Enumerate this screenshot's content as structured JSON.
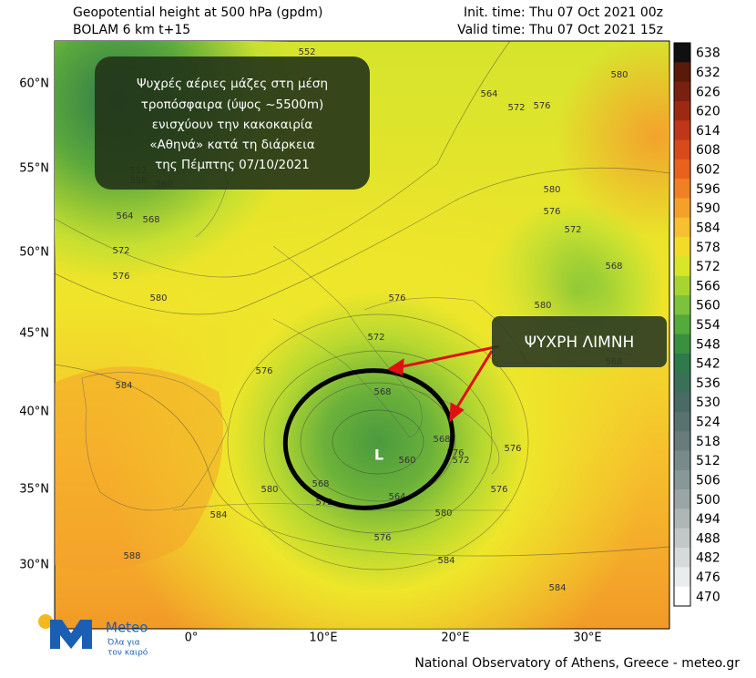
{
  "header": {
    "title": "Geopotential height at 500 hPa (gpdm)",
    "model": "BOLAM 6 km t+15",
    "init_time": "Init. time: Thu 07 Oct 2021 00z",
    "valid_time": "Valid time: Thu 07 Oct 2021 15z"
  },
  "annotation": {
    "lines": [
      "Ψυχρές αέριες μάζες στη μέση",
      "τροπόσφαιρα  (ύψος ~5500m)",
      "ενισχύουν την κακοκαιρία",
      "«Αθηνά» κατά τη διάρκεια",
      "της Πέμπτης 07/10/2021"
    ],
    "callout": "ΨΥΧΡΗ ΛΙΜΝΗ",
    "low": "L"
  },
  "map": {
    "lat_labels": [
      "60°N",
      "55°N",
      "50°N",
      "45°N",
      "40°N",
      "35°N",
      "30°N"
    ],
    "lon_labels": [
      "0°",
      "10°E",
      "20°E",
      "30°E"
    ],
    "contour_labels": [
      552,
      560,
      564,
      572,
      576,
      580,
      552,
      556,
      560,
      564,
      568,
      572,
      576,
      580,
      580,
      576,
      572,
      568,
      568,
      576,
      572,
      576,
      584,
      580,
      584,
      588,
      584,
      580,
      568,
      572,
      564,
      560,
      568,
      576,
      572,
      576,
      576,
      580,
      584,
      568,
      576
    ]
  },
  "colorbar": {
    "ticks": [
      638,
      632,
      626,
      620,
      614,
      608,
      602,
      596,
      590,
      584,
      578,
      572,
      566,
      560,
      554,
      548,
      542,
      536,
      530,
      524,
      518,
      512,
      506,
      500,
      494,
      488,
      482,
      476,
      470
    ],
    "colors": [
      "#101010",
      "#5a1a0a",
      "#7a2010",
      "#9c2a12",
      "#c0361a",
      "#d8491c",
      "#e8621e",
      "#f08024",
      "#f5a02a",
      "#f7c030",
      "#f2dc2a",
      "#d8e62a",
      "#a8d432",
      "#7cc23a",
      "#55aa3c",
      "#3a9040",
      "#2f7a4a",
      "#3a7058",
      "#4a6a66",
      "#587270",
      "#687c7c",
      "#788a8a",
      "#889898",
      "#9aa6a6",
      "#aeb6b6",
      "#c2c8c8",
      "#d6dada",
      "#eaeded",
      "#ffffff"
    ]
  },
  "logo": {
    "name": "Meteo",
    "tagline_1": "Όλα για",
    "tagline_2": "τον καιρό"
  },
  "footer": "National Observatory of Athens, Greece - meteo.gr"
}
